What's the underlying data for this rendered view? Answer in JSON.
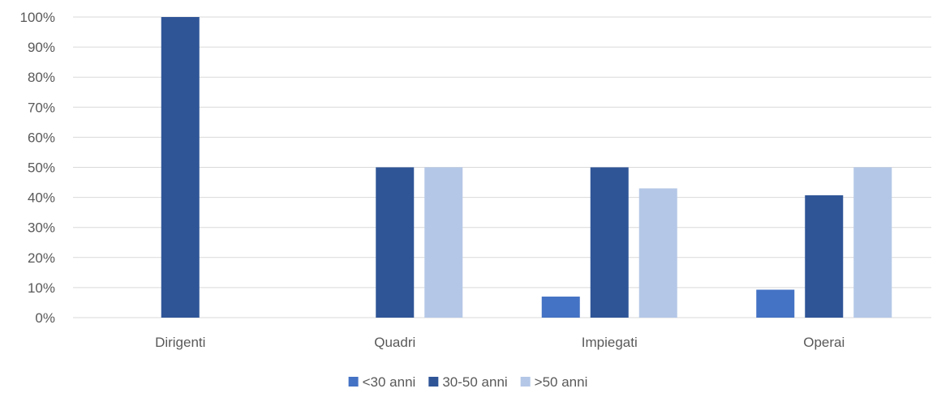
{
  "chart_data": {
    "type": "bar",
    "categories": [
      "Dirigenti",
      "Quadri",
      "Impiegati",
      "Operai"
    ],
    "series": [
      {
        "name": "<30 anni",
        "color": "#4472C4",
        "values": [
          0,
          0,
          7,
          9.3
        ]
      },
      {
        "name": "30-50 anni",
        "color": "#2F5597",
        "values": [
          100,
          50,
          50,
          40.7
        ]
      },
      {
        "name": ">50 anni",
        "color": "#B4C7E7",
        "values": [
          0,
          50,
          43,
          50
        ]
      }
    ],
    "ylim": [
      0,
      100
    ],
    "yticks": [
      "0%",
      "10%",
      "20%",
      "30%",
      "40%",
      "50%",
      "60%",
      "70%",
      "80%",
      "90%",
      "100%"
    ],
    "grid": true,
    "legend_position": "bottom"
  }
}
